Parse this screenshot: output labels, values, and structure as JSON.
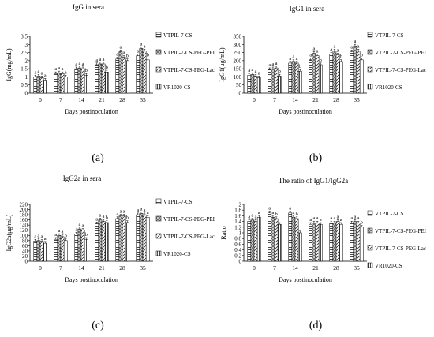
{
  "panels": [
    {
      "label": "(a)"
    },
    {
      "label": "(b)"
    },
    {
      "label": "(c)"
    },
    {
      "label": "(d)"
    }
  ],
  "legend": {
    "entries": [
      "VTPIL-7-CS",
      "VTPIL-7-CS-PEG-PEI",
      "VTPIL-7-CS-PEG-Lac",
      "VR1020-CS"
    ]
  },
  "chart_data": [
    {
      "type": "bar",
      "title": "IgG in sera",
      "xlabel": "Days postinoculation",
      "ylabel": "IgG(mg/mL)",
      "categories": [
        "0",
        "7",
        "14",
        "21",
        "28",
        "35"
      ],
      "ylim": [
        0,
        3.5
      ],
      "yticks": [
        "0",
        "0.5",
        "1",
        "1.5",
        "2",
        "2.5",
        "3",
        "3.5"
      ],
      "series": [
        {
          "name": "VTPIL-7-CS",
          "values": [
            1.0,
            1.2,
            1.5,
            1.75,
            2.1,
            2.3
          ]
        },
        {
          "name": "VTPIL-7-CS-PEG-PEI",
          "values": [
            1.05,
            1.25,
            1.55,
            1.8,
            2.55,
            2.75
          ]
        },
        {
          "name": "VTPIL-7-CS-PEG-Lac",
          "values": [
            0.95,
            1.2,
            1.5,
            1.8,
            2.2,
            2.6
          ]
        },
        {
          "name": "VR1020-CS",
          "values": [
            0.8,
            1.0,
            1.1,
            1.3,
            2.0,
            2.05
          ]
        }
      ],
      "bar_labels": [
        [
          "a",
          "a",
          "a",
          "a"
        ],
        [
          "a",
          "a",
          "a",
          "a"
        ],
        [
          "a",
          "a",
          "a",
          "b"
        ],
        [
          "a",
          "a",
          "a",
          "b"
        ],
        [
          "a",
          "a",
          "a",
          "b"
        ],
        [
          "a",
          "a",
          "a",
          "b"
        ]
      ]
    },
    {
      "type": "bar",
      "title": "IgG1 in sera",
      "xlabel": "Days postinoculation",
      "ylabel": "IgG1(μg/mL)",
      "categories": [
        "0",
        "7",
        "14",
        "21",
        "28",
        "35"
      ],
      "ylim": [
        0,
        350
      ],
      "yticks": [
        "0",
        "50",
        "100",
        "150",
        "200",
        "250",
        "300",
        "350"
      ],
      "series": [
        {
          "name": "VTPIL-7-CS",
          "values": [
            110,
            145,
            185,
            205,
            240,
            255
          ]
        },
        {
          "name": "VTPIL-7-CS-PEG-PEI",
          "values": [
            115,
            150,
            195,
            245,
            260,
            290
          ]
        },
        {
          "name": "VTPIL-7-CS-PEG-Lac",
          "values": [
            105,
            155,
            185,
            230,
            235,
            260
          ]
        },
        {
          "name": "VR1020-CS",
          "values": [
            95,
            105,
            135,
            175,
            195,
            205
          ]
        }
      ],
      "bar_labels": [
        [
          "a",
          "a",
          "a",
          "a"
        ],
        [
          "a",
          "a",
          "a",
          "b"
        ],
        [
          "a",
          "a",
          "a",
          "b"
        ],
        [
          "a",
          "a",
          "a",
          "b"
        ],
        [
          "a",
          "a",
          "a",
          "b"
        ],
        [
          "a",
          "a",
          "a",
          "b"
        ]
      ]
    },
    {
      "type": "bar",
      "title": "IgG2a in sera",
      "xlabel": "Days postinoculation",
      "ylabel": "IgG2a(μg/mL)",
      "categories": [
        "0",
        "7",
        "14",
        "21",
        "28",
        "35"
      ],
      "ylim": [
        0,
        220
      ],
      "yticks": [
        "0",
        "20",
        "40",
        "60",
        "80",
        "100",
        "120",
        "140",
        "160",
        "180",
        "200",
        "220"
      ],
      "series": [
        {
          "name": "VTPIL-7-CS",
          "values": [
            78,
            85,
            105,
            145,
            165,
            180
          ]
        },
        {
          "name": "VTPIL-7-CS-PEG-PEI",
          "values": [
            80,
            100,
            125,
            160,
            175,
            185
          ]
        },
        {
          "name": "VTPIL-7-CS-PEG-Lac",
          "values": [
            77,
            95,
            120,
            155,
            175,
            180
          ]
        },
        {
          "name": "VR1020-CS",
          "values": [
            70,
            80,
            85,
            150,
            150,
            170
          ]
        }
      ],
      "bar_labels": [
        [
          "a",
          "a",
          "a",
          "a"
        ],
        [
          "a",
          "a",
          "a",
          "b"
        ],
        [
          "a",
          "a",
          "a",
          "b"
        ],
        [
          "a",
          "a",
          "a",
          "b"
        ],
        [
          "a",
          "a",
          "a",
          "b"
        ],
        [
          "a",
          "a",
          "a",
          "a"
        ]
      ]
    },
    {
      "type": "bar",
      "title": "The ratio of IgG1/IgG2a",
      "xlabel": "Days postinoculation",
      "ylabel": "Ratio",
      "categories": [
        "0",
        "7",
        "14",
        "21",
        "28",
        "35"
      ],
      "ylim": [
        0,
        2
      ],
      "yticks": [
        "0",
        "0.2",
        "0.4",
        "0.6",
        "0.8",
        "1",
        "1.2",
        "1.4",
        "1.6",
        "1.8",
        "2"
      ],
      "series": [
        {
          "name": "VTPIL-7-CS",
          "values": [
            1.4,
            1.7,
            1.7,
            1.3,
            1.35,
            1.35
          ]
        },
        {
          "name": "VTPIL-7-CS-PEG-PEI",
          "values": [
            1.45,
            1.55,
            1.55,
            1.35,
            1.35,
            1.4
          ]
        },
        {
          "name": "VTPIL-7-CS-PEG-Lac",
          "values": [
            1.4,
            1.5,
            1.5,
            1.35,
            1.4,
            1.35
          ]
        },
        {
          "name": "VR1020-CS",
          "values": [
            1.55,
            1.3,
            1.0,
            1.3,
            1.3,
            1.2
          ]
        }
      ],
      "bar_labels": [
        [
          "a",
          "a",
          "a",
          "a"
        ],
        [
          "a",
          "a",
          "b",
          ""
        ],
        [
          "a",
          "a",
          "b",
          ""
        ],
        [
          "a",
          "a",
          "a",
          "a"
        ],
        [
          "a",
          "a",
          "a",
          "a"
        ],
        [
          "a",
          "a",
          "a",
          "b"
        ]
      ]
    }
  ],
  "colors": {
    "bar_fill": "#ffffff",
    "bar_stroke": "#000000",
    "axis": "#000000",
    "hatch": "#444444"
  }
}
